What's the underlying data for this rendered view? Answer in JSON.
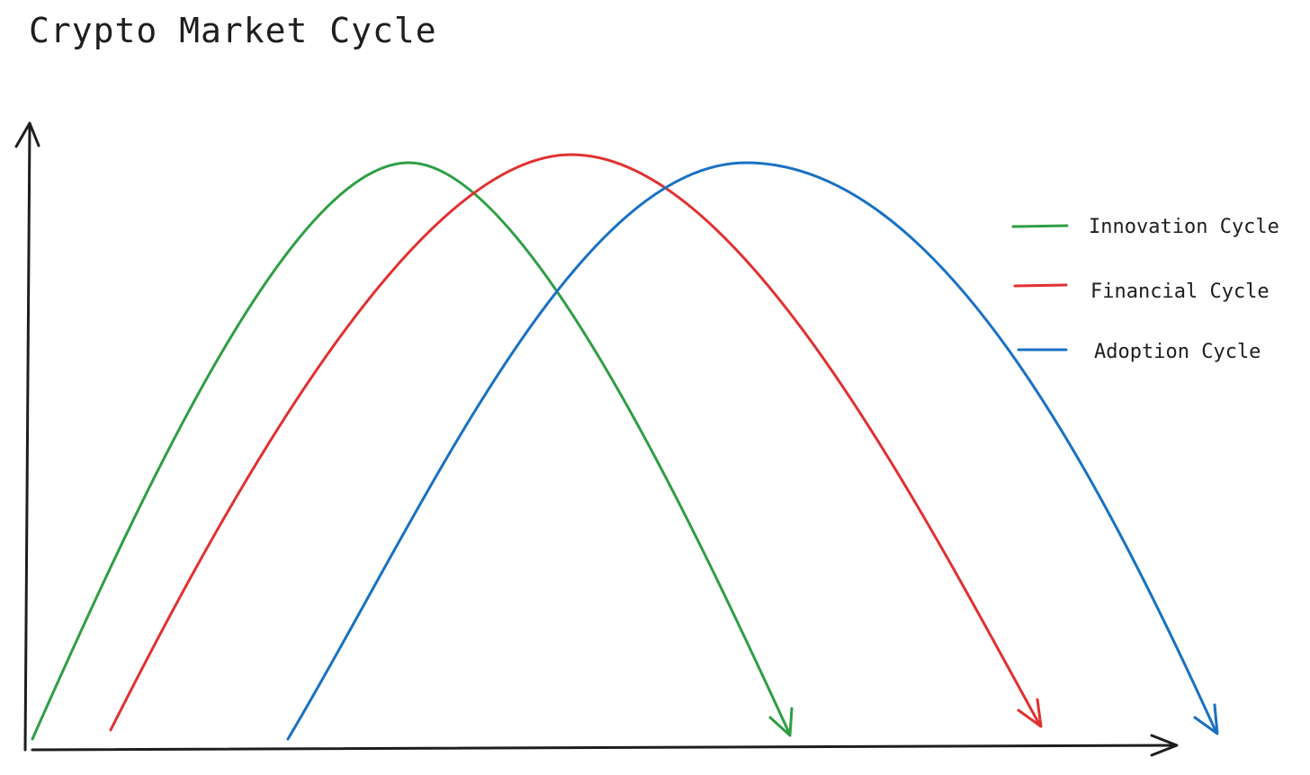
{
  "title": "Crypto Market Cycle",
  "legend": [
    {
      "label": "Innovation Cycle",
      "color": "#2f9e44"
    },
    {
      "label": "Financial Cycle",
      "color": "#e03131"
    },
    {
      "label": "Adoption Cycle",
      "color": "#1971c2"
    }
  ],
  "colors": {
    "axis": "#1e1e1e",
    "background": "#ffffff"
  }
}
